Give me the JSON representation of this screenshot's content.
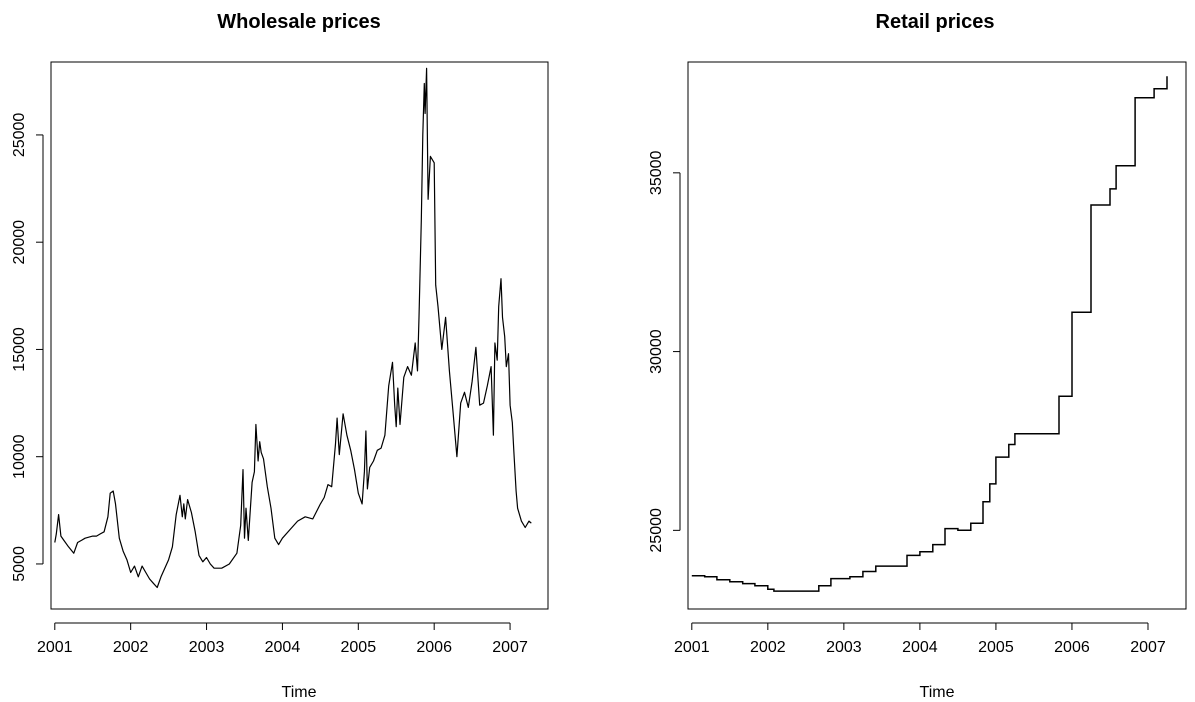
{
  "chart_data": [
    {
      "type": "line",
      "title": "Wholesale prices",
      "xlabel": "Time",
      "ylabel": "",
      "xlim": [
        2000.95,
        2007.5
      ],
      "ylim": [
        2900,
        28400
      ],
      "x_ticks": [
        2001,
        2002,
        2003,
        2004,
        2005,
        2006,
        2007
      ],
      "x_tick_labels": [
        "2001",
        "2002",
        "2003",
        "2004",
        "2005",
        "2006",
        "2007"
      ],
      "y_ticks": [
        5000,
        10000,
        15000,
        20000,
        25000
      ],
      "y_tick_labels": [
        "5000",
        "10000",
        "15000",
        "20000",
        "25000"
      ],
      "grid": false,
      "series": [
        {
          "x": [
            2001.0,
            2001.02,
            2001.05,
            2001.08,
            2001.12,
            2001.18,
            2001.25,
            2001.3,
            2001.35,
            2001.4,
            2001.5,
            2001.55,
            2001.6,
            2001.65,
            2001.7,
            2001.73,
            2001.77,
            2001.8,
            2001.85,
            2001.9,
            2001.95,
            2002.0,
            2002.05,
            2002.1,
            2002.15,
            2002.2,
            2002.25,
            2002.3,
            2002.35,
            2002.4,
            2002.45,
            2002.5,
            2002.55,
            2002.6,
            2002.65,
            2002.68,
            2002.7,
            2002.72,
            2002.75,
            2002.8,
            2002.85,
            2002.9,
            2002.95,
            2003.0,
            2003.05,
            2003.1,
            2003.2,
            2003.3,
            2003.4,
            2003.45,
            2003.48,
            2003.5,
            2003.52,
            2003.55,
            2003.6,
            2003.63,
            2003.65,
            2003.68,
            2003.7,
            2003.72,
            2003.75,
            2003.8,
            2003.85,
            2003.9,
            2003.95,
            2004.0,
            2004.1,
            2004.2,
            2004.3,
            2004.4,
            2004.5,
            2004.55,
            2004.6,
            2004.65,
            2004.7,
            2004.72,
            2004.75,
            2004.8,
            2004.85,
            2004.9,
            2004.95,
            2005.0,
            2005.05,
            2005.08,
            2005.1,
            2005.12,
            2005.15,
            2005.2,
            2005.25,
            2005.3,
            2005.35,
            2005.4,
            2005.45,
            2005.48,
            2005.5,
            2005.52,
            2005.55,
            2005.6,
            2005.65,
            2005.7,
            2005.75,
            2005.78,
            2005.8,
            2005.83,
            2005.85,
            2005.87,
            2005.88,
            2005.9,
            2005.92,
            2005.95,
            2006.0,
            2006.02,
            2006.05,
            2006.1,
            2006.15,
            2006.2,
            2006.25,
            2006.3,
            2006.35,
            2006.4,
            2006.45,
            2006.5,
            2006.55,
            2006.6,
            2006.65,
            2006.7,
            2006.75,
            2006.78,
            2006.8,
            2006.83,
            2006.85,
            2006.88,
            2006.9,
            2006.93,
            2006.95,
            2006.98,
            2007.0,
            2007.03,
            2007.05,
            2007.08,
            2007.1,
            2007.15,
            2007.2,
            2007.25,
            2007.28
          ],
          "values": [
            6000,
            6400,
            7300,
            6300,
            6100,
            5800,
            5500,
            6000,
            6100,
            6200,
            6300,
            6300,
            6400,
            6500,
            7200,
            8300,
            8400,
            7800,
            6200,
            5600,
            5200,
            4600,
            4900,
            4400,
            4900,
            4600,
            4300,
            4100,
            3900,
            4400,
            4800,
            5200,
            5800,
            7300,
            8200,
            7200,
            7800,
            7100,
            8000,
            7400,
            6500,
            5400,
            5100,
            5300,
            5000,
            4800,
            4800,
            5000,
            5500,
            6800,
            9400,
            6200,
            7600,
            6100,
            8800,
            9300,
            11500,
            9800,
            10700,
            10200,
            9900,
            8600,
            7600,
            6200,
            5900,
            6200,
            6600,
            7000,
            7200,
            7100,
            7800,
            8100,
            8700,
            8600,
            10600,
            11800,
            10100,
            12000,
            11000,
            10300,
            9400,
            8300,
            7800,
            9300,
            11200,
            8500,
            9500,
            9800,
            10300,
            10400,
            11000,
            13300,
            14400,
            12400,
            11400,
            13200,
            11500,
            13700,
            14200,
            13800,
            15300,
            14000,
            16500,
            21000,
            25000,
            27400,
            26000,
            28100,
            22000,
            24000,
            23700,
            18000,
            17000,
            15000,
            16500,
            14000,
            12000,
            10000,
            12500,
            13000,
            12300,
            13500,
            15100,
            12400,
            12500,
            13300,
            14200,
            11000,
            15300,
            14500,
            17000,
            18300,
            16500,
            15600,
            14200,
            14800,
            12400,
            11600,
            10200,
            8400,
            7600,
            7000,
            6700,
            7000,
            6900
          ]
        }
      ]
    },
    {
      "type": "line",
      "title": "Retail prices",
      "xlabel": "Time",
      "ylabel": "",
      "xlim": [
        2000.95,
        2007.5
      ],
      "ylim": [
        22800,
        38100
      ],
      "x_ticks": [
        2001,
        2002,
        2003,
        2004,
        2005,
        2006,
        2007
      ],
      "x_tick_labels": [
        "2001",
        "2002",
        "2003",
        "2004",
        "2005",
        "2006",
        "2007"
      ],
      "y_ticks": [
        25000,
        30000,
        35000
      ],
      "y_tick_labels": [
        "25000",
        "30000",
        "35000"
      ],
      "grid": false,
      "series": [
        {
          "x": [
            2001.0,
            2001.17,
            2001.33,
            2001.5,
            2001.67,
            2001.83,
            2002.0,
            2002.08,
            2002.17,
            2002.5,
            2002.67,
            2002.83,
            2003.0,
            2003.08,
            2003.25,
            2003.42,
            2003.67,
            2003.83,
            2004.0,
            2004.17,
            2004.33,
            2004.5,
            2004.67,
            2004.83,
            2004.92,
            2005.0,
            2005.17,
            2005.25,
            2005.67,
            2005.83,
            2006.0,
            2006.17,
            2006.25,
            2006.42,
            2006.5,
            2006.58,
            2006.83,
            2006.92,
            2007.08,
            2007.25
          ],
          "values": [
            23730,
            23700,
            23620,
            23560,
            23510,
            23450,
            23350,
            23300,
            23300,
            23300,
            23450,
            23650,
            23650,
            23700,
            23850,
            24000,
            24000,
            24300,
            24400,
            24600,
            25050,
            25000,
            25200,
            25800,
            26300,
            27050,
            27400,
            27700,
            27700,
            28750,
            31100,
            31100,
            34100,
            34100,
            34550,
            35200,
            37100,
            37100,
            37350,
            37700
          ]
        }
      ]
    }
  ]
}
